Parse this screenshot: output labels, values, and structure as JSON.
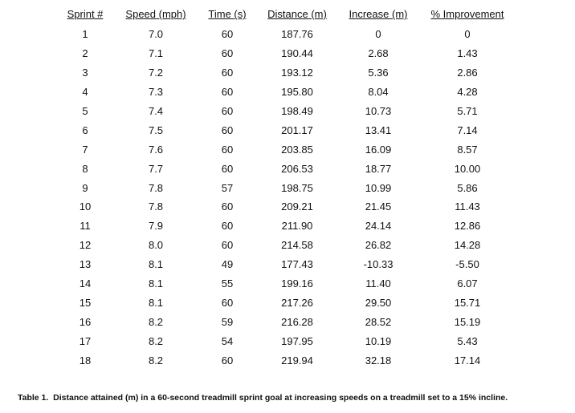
{
  "table": {
    "header": [
      "Sprint #",
      "Speed (mph)",
      "Time (s)",
      "Distance (m)",
      "Increase (m)",
      "% Improvement"
    ],
    "rows": [
      [
        "1",
        "7.0",
        "60",
        "187.76",
        "0",
        "0"
      ],
      [
        "2",
        "7.1",
        "60",
        "190.44",
        "2.68",
        "1.43"
      ],
      [
        "3",
        "7.2",
        "60",
        "193.12",
        "5.36",
        "2.86"
      ],
      [
        "4",
        "7.3",
        "60",
        "195.80",
        "8.04",
        "4.28"
      ],
      [
        "5",
        "7.4",
        "60",
        "198.49",
        "10.73",
        "5.71"
      ],
      [
        "6",
        "7.5",
        "60",
        "201.17",
        "13.41",
        "7.14"
      ],
      [
        "7",
        "7.6",
        "60",
        "203.85",
        "16.09",
        "8.57"
      ],
      [
        "8",
        "7.7",
        "60",
        "206.53",
        "18.77",
        "10.00"
      ],
      [
        "9",
        "7.8",
        "57",
        "198.75",
        "10.99",
        "5.86"
      ],
      [
        "10",
        "7.8",
        "60",
        "209.21",
        "21.45",
        "11.43"
      ],
      [
        "11",
        "7.9",
        "60",
        "211.90",
        "24.14",
        "12.86"
      ],
      [
        "12",
        "8.0",
        "60",
        "214.58",
        "26.82",
        "14.28"
      ],
      [
        "13",
        "8.1",
        "49",
        "177.43",
        "-10.33",
        "-5.50"
      ],
      [
        "14",
        "8.1",
        "55",
        "199.16",
        "11.40",
        "6.07"
      ],
      [
        "15",
        "8.1",
        "60",
        "217.26",
        "29.50",
        "15.71"
      ],
      [
        "16",
        "8.2",
        "59",
        "216.28",
        "28.52",
        "15.19"
      ],
      [
        "17",
        "8.2",
        "54",
        "197.95",
        "10.19",
        "5.43"
      ],
      [
        "18",
        "8.2",
        "60",
        "219.94",
        "32.18",
        "17.14"
      ]
    ]
  },
  "caption": "Table 1.  Distance attained (m) in a 60-second treadmill sprint goal at increasing speeds on a treadmill set to a 15% incline."
}
